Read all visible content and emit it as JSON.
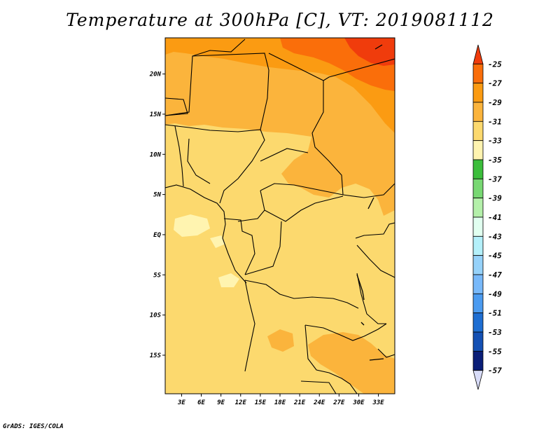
{
  "title": "Temperature at 300hPa [C], VT: 2019081112",
  "credit": "GrADS: IGES/COLA",
  "map": {
    "variable": "Temperature",
    "level": "300hPa",
    "units": "C",
    "valid_time": "2019081112",
    "lat_ticks": [
      "20N",
      "15N",
      "10N",
      "5N",
      "EQ",
      "5S",
      "10S",
      "15S"
    ],
    "lat_values": [
      20,
      15,
      10,
      5,
      0,
      -5,
      -10,
      -15
    ],
    "lon_ticks": [
      "3E",
      "6E",
      "9E",
      "12E",
      "15E",
      "18E",
      "21E",
      "24E",
      "27E",
      "30E",
      "33E"
    ],
    "lon_values": [
      3,
      6,
      9,
      12,
      15,
      18,
      21,
      24,
      27,
      30,
      33
    ],
    "lon_range": [
      0.5,
      35.5
    ],
    "lat_range": [
      -19.8,
      24.5
    ]
  },
  "colorbar": {
    "labels": [
      "-25",
      "-27",
      "-29",
      "-31",
      "-33",
      "-35",
      "-37",
      "-39",
      "-41",
      "-43",
      "-45",
      "-47",
      "-49",
      "-51",
      "-53",
      "-55",
      "-57"
    ],
    "colors": [
      "#f03c0c",
      "#fa6e0a",
      "#fb9b12",
      "#fbb43c",
      "#fcd96e",
      "#fff4b0",
      "#3cbe3c",
      "#78d873",
      "#b4f0aa",
      "#e1fff0",
      "#b4f0fa",
      "#96d2fa",
      "#78b9fa",
      "#4b9bf0",
      "#1e6ed2",
      "#1450b4",
      "#0a1e78",
      "#d8dcf8"
    ]
  }
}
